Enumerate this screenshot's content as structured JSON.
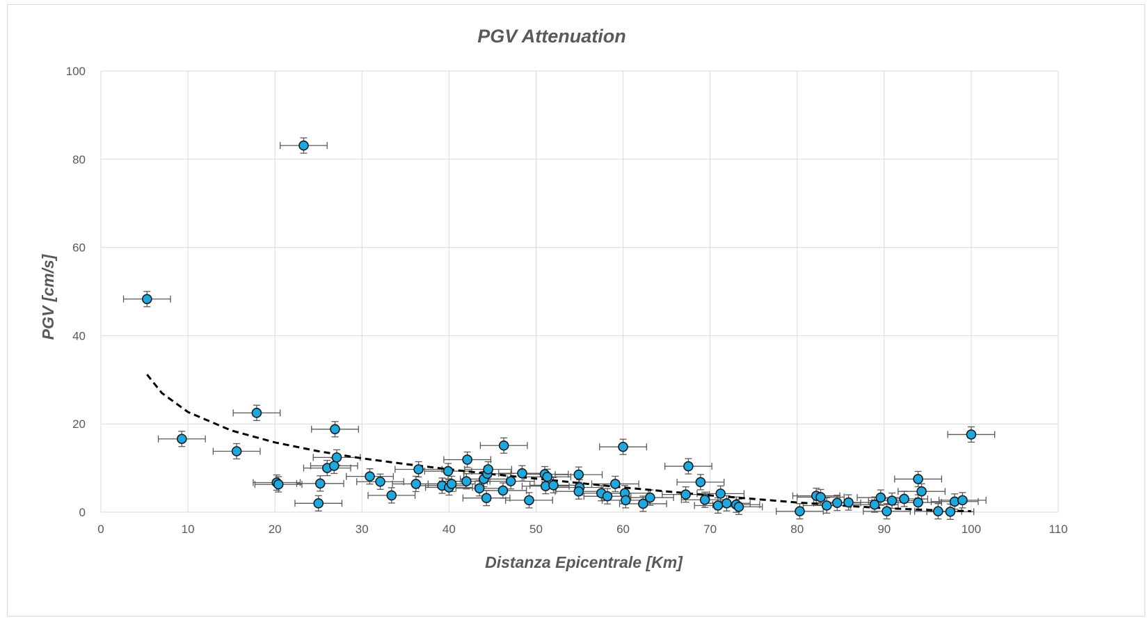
{
  "chart_data": {
    "type": "scatter",
    "title": "PGV Attenuation",
    "xlabel": "Distanza Epicentrale [Km]",
    "ylabel": "PGV [cm/s]",
    "xlim": [
      0,
      110
    ],
    "ylim": [
      0,
      100
    ],
    "x_ticks": [
      "0",
      "10",
      "20",
      "30",
      "40",
      "50",
      "60",
      "70",
      "80",
      "90",
      "100",
      "110"
    ],
    "y_ticks": [
      "0",
      "20",
      "40",
      "60",
      "80",
      "100"
    ],
    "grid": true,
    "legend": "none",
    "colors": {
      "marker_fill": "#1fa8e0",
      "marker_edge": "#1a1a1a",
      "error_bar": "#595959",
      "trend": "#000000",
      "grid": "#d9d9d9"
    },
    "x_error_km": 2.7,
    "series": [
      {
        "marker": "circle",
        "points": [
          [
            5.3,
            48.3
          ],
          [
            9.3,
            16.6
          ],
          [
            15.6,
            13.8
          ],
          [
            17.9,
            22.5
          ],
          [
            20.2,
            6.7
          ],
          [
            20.4,
            6.3
          ],
          [
            23.3,
            83.1
          ],
          [
            25.0,
            2.0
          ],
          [
            25.2,
            6.5
          ],
          [
            26.0,
            10.0
          ],
          [
            26.8,
            10.5
          ],
          [
            26.9,
            18.8
          ],
          [
            27.1,
            12.4
          ],
          [
            30.9,
            8.1
          ],
          [
            32.1,
            6.9
          ],
          [
            33.4,
            3.8
          ],
          [
            36.2,
            6.4
          ],
          [
            36.5,
            9.7
          ],
          [
            39.2,
            6.0
          ],
          [
            39.9,
            9.3
          ],
          [
            40.0,
            5.6
          ],
          [
            40.3,
            6.4
          ],
          [
            42.0,
            7.0
          ],
          [
            42.1,
            11.9
          ],
          [
            43.5,
            5.4
          ],
          [
            44.0,
            7.5
          ],
          [
            44.3,
            3.2
          ],
          [
            44.4,
            8.7
          ],
          [
            44.5,
            9.7
          ],
          [
            46.2,
            4.9
          ],
          [
            46.3,
            15.1
          ],
          [
            47.1,
            7.0
          ],
          [
            48.4,
            8.8
          ],
          [
            49.2,
            2.7
          ],
          [
            51.0,
            8.6
          ],
          [
            51.1,
            5.9
          ],
          [
            51.3,
            8.0
          ],
          [
            52.0,
            6.1
          ],
          [
            54.9,
            8.5
          ],
          [
            55.0,
            5.6
          ],
          [
            54.9,
            4.7
          ],
          [
            57.5,
            4.3
          ],
          [
            58.2,
            3.6
          ],
          [
            59.1,
            6.4
          ],
          [
            60.0,
            14.8
          ],
          [
            60.2,
            4.3
          ],
          [
            60.3,
            2.7
          ],
          [
            62.3,
            1.9
          ],
          [
            63.1,
            3.3
          ],
          [
            67.2,
            4.0
          ],
          [
            67.5,
            10.4
          ],
          [
            68.9,
            6.8
          ],
          [
            69.4,
            2.8
          ],
          [
            70.9,
            1.5
          ],
          [
            71.2,
            4.2
          ],
          [
            71.9,
            2.0
          ],
          [
            73.0,
            1.7
          ],
          [
            73.3,
            1.2
          ],
          [
            80.3,
            0.2
          ],
          [
            82.2,
            3.7
          ],
          [
            82.7,
            3.4
          ],
          [
            83.4,
            1.5
          ],
          [
            84.6,
            2.1
          ],
          [
            85.9,
            2.2
          ],
          [
            88.9,
            1.7
          ],
          [
            89.6,
            3.3
          ],
          [
            90.3,
            0.2
          ],
          [
            90.9,
            2.6
          ],
          [
            92.3,
            3.0
          ],
          [
            93.9,
            7.5
          ],
          [
            93.9,
            2.2
          ],
          [
            94.3,
            4.7
          ],
          [
            96.2,
            0.2
          ],
          [
            97.6,
            0.1
          ],
          [
            98.1,
            2.4
          ],
          [
            99.0,
            2.7
          ],
          [
            100.0,
            17.6
          ]
        ]
      }
    ],
    "trendline": {
      "style": "dashed",
      "points": [
        [
          5.3,
          31.2
        ],
        [
          7,
          27.0
        ],
        [
          10,
          22.7
        ],
        [
          15,
          18.5
        ],
        [
          20,
          15.8
        ],
        [
          25,
          13.8
        ],
        [
          30,
          12.2
        ],
        [
          35,
          10.9
        ],
        [
          40,
          9.7
        ],
        [
          45,
          8.6
        ],
        [
          50,
          7.6
        ],
        [
          55,
          6.6
        ],
        [
          60,
          5.6
        ],
        [
          65,
          4.7
        ],
        [
          70,
          3.8
        ],
        [
          75,
          3.0
        ],
        [
          80,
          2.2
        ],
        [
          85,
          1.5
        ],
        [
          90,
          0.9
        ],
        [
          95,
          0.5
        ],
        [
          100,
          0.2
        ]
      ]
    }
  }
}
